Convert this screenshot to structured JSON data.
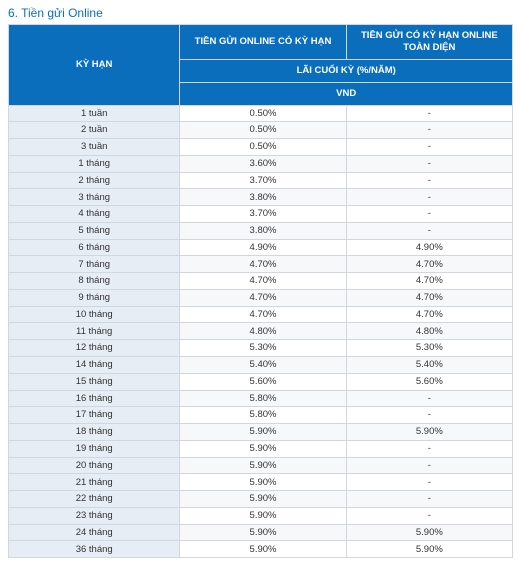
{
  "title": "6. Tiền gửi Online",
  "headers": {
    "term": "KỲ HẠN",
    "col1": "TIỀN GỬI ONLINE\nCÓ KỲ HẠN",
    "col2": "TIỀN GỬI CÓ KỲ HẠN ONLINE\nTOÀN DIỆN",
    "sub": "LÃI CUỐI KỲ (%/NĂM)",
    "currency": "VND"
  },
  "colors": {
    "header_bg": "#0a6ebd",
    "header_fg": "#ffffff",
    "term_bg": "#e6edf4",
    "row_alt_bg": "#f6f8fa",
    "border": "#d0d7de",
    "title": "#0a6ebd"
  },
  "rows": [
    {
      "term": "1 tuần",
      "a": "0.50%",
      "b": "-"
    },
    {
      "term": "2 tuần",
      "a": "0.50%",
      "b": "-"
    },
    {
      "term": "3 tuần",
      "a": "0.50%",
      "b": "-"
    },
    {
      "term": "1 tháng",
      "a": "3.60%",
      "b": "-"
    },
    {
      "term": "2 tháng",
      "a": "3.70%",
      "b": "-"
    },
    {
      "term": "3 tháng",
      "a": "3.80%",
      "b": "-"
    },
    {
      "term": "4 tháng",
      "a": "3.70%",
      "b": "-"
    },
    {
      "term": "5 tháng",
      "a": "3.80%",
      "b": "-"
    },
    {
      "term": "6 tháng",
      "a": "4.90%",
      "b": "4.90%"
    },
    {
      "term": "7 tháng",
      "a": "4.70%",
      "b": "4.70%"
    },
    {
      "term": "8 tháng",
      "a": "4.70%",
      "b": "4.70%"
    },
    {
      "term": "9 tháng",
      "a": "4.70%",
      "b": "4.70%"
    },
    {
      "term": "10 tháng",
      "a": "4.70%",
      "b": "4.70%"
    },
    {
      "term": "11 tháng",
      "a": "4.80%",
      "b": "4.80%"
    },
    {
      "term": "12 tháng",
      "a": "5.30%",
      "b": "5.30%"
    },
    {
      "term": "14 tháng",
      "a": "5.40%",
      "b": "5.40%"
    },
    {
      "term": "15 tháng",
      "a": "5.60%",
      "b": "5.60%"
    },
    {
      "term": "16 tháng",
      "a": "5.80%",
      "b": "-"
    },
    {
      "term": "17 tháng",
      "a": "5.80%",
      "b": "-"
    },
    {
      "term": "18 tháng",
      "a": "5.90%",
      "b": "5.90%"
    },
    {
      "term": "19 tháng",
      "a": "5.90%",
      "b": "-"
    },
    {
      "term": "20 tháng",
      "a": "5.90%",
      "b": "-"
    },
    {
      "term": "21 tháng",
      "a": "5.90%",
      "b": "-"
    },
    {
      "term": "22 tháng",
      "a": "5.90%",
      "b": "-"
    },
    {
      "term": "23 tháng",
      "a": "5.90%",
      "b": "-"
    },
    {
      "term": "24 tháng",
      "a": "5.90%",
      "b": "5.90%"
    },
    {
      "term": "36 tháng",
      "a": "5.90%",
      "b": "5.90%"
    }
  ]
}
